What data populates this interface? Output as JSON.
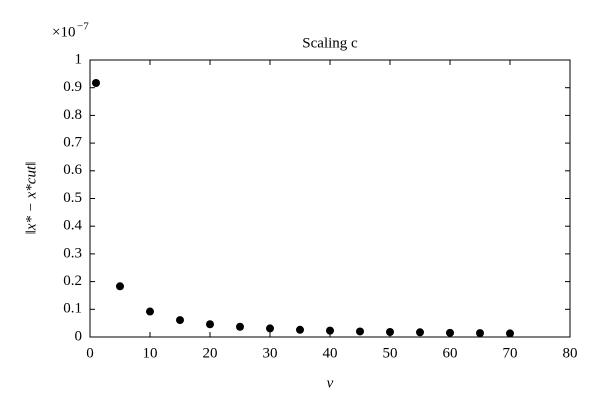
{
  "chart_data": {
    "type": "scatter",
    "title": "Scaling c",
    "xlabel": "v",
    "ylabel": "‖x* − x*cut‖",
    "y_offset_text": "×10",
    "y_offset_exponent": "−7",
    "x": [
      1,
      5,
      10,
      15,
      20,
      25,
      30,
      35,
      40,
      45,
      50,
      55,
      60,
      65,
      70
    ],
    "series": [
      {
        "name": "‖x* − x*cut‖",
        "color": "#000000",
        "values": [
          0.917,
          0.183,
          0.092,
          0.061,
          0.046,
          0.037,
          0.031,
          0.026,
          0.023,
          0.02,
          0.018,
          0.017,
          0.015,
          0.014,
          0.013
        ]
      }
    ],
    "xlim": [
      0,
      80
    ],
    "xticks": [
      0,
      10,
      20,
      30,
      40,
      50,
      60,
      70,
      80
    ],
    "ylim": [
      0,
      1
    ],
    "yticks": [
      0,
      0.1,
      0.2,
      0.3,
      0.4,
      0.5,
      0.6,
      0.7,
      0.8,
      0.9,
      1
    ],
    "grid": false
  }
}
